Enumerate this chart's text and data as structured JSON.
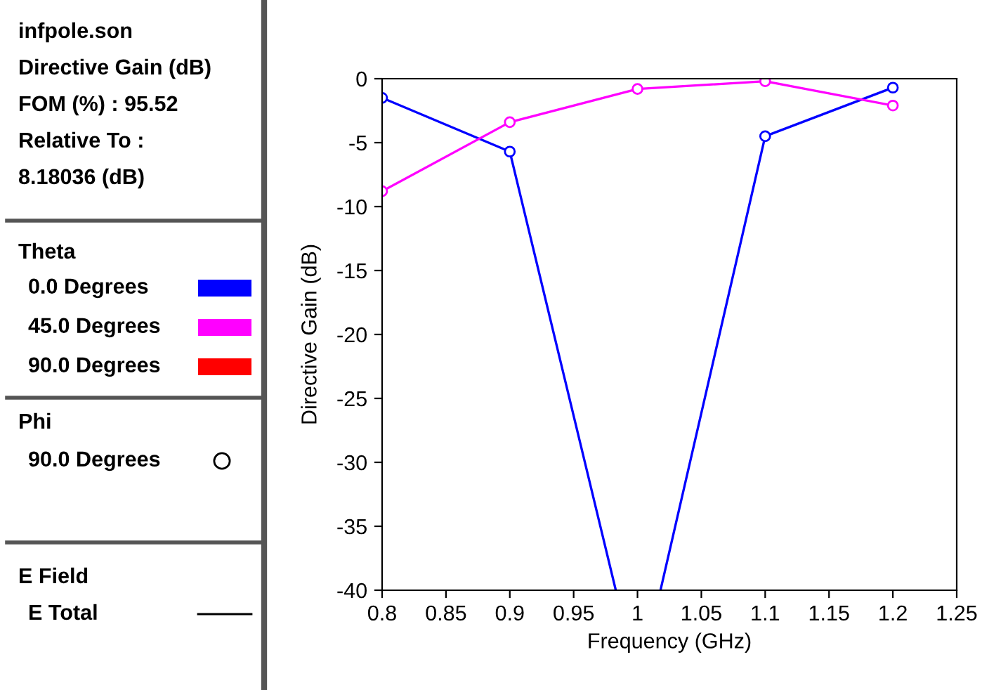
{
  "chart_data": {
    "type": "line",
    "xlabel": "Frequency (GHz)",
    "ylabel": "Directive Gain (dB)",
    "x": [
      0.8,
      0.9,
      1.0,
      1.1,
      1.2
    ],
    "series": [
      {
        "name": "0.0 Degrees",
        "color": "#0000ff",
        "x": [
          0.8,
          0.9,
          0.983,
          1.0,
          1.018,
          1.1,
          1.2
        ],
        "values": [
          -1.5,
          -5.7,
          -40,
          null,
          -40,
          -4.5,
          -0.7
        ]
      },
      {
        "name": "45.0 Degrees",
        "color": "#ff00ff",
        "values": [
          -8.8,
          -3.4,
          -0.8,
          -0.2,
          -2.1
        ]
      },
      {
        "name": "90.0 Degrees",
        "color": "#ff0000",
        "values": [
          null,
          null,
          null,
          null,
          null
        ]
      }
    ],
    "legend_title": "Theta",
    "legend": "left",
    "annotations": [
      "infpole.son",
      "Directive Gain (dB)",
      "FOM (%) : 95.52",
      "Relative To :",
      "8.18036 (dB)",
      "Phi",
      "90.0 Degrees",
      "E Field",
      "E Total"
    ],
    "marker": "circle",
    "line_style": "solid",
    "grid": false,
    "xlim": [
      0.8,
      1.25
    ],
    "xticks": [
      0.8,
      0.85,
      0.9,
      0.95,
      1,
      1.05,
      1.1,
      1.15,
      1.2,
      1.25
    ],
    "ylim": [
      -40,
      0
    ],
    "yticks": [
      0,
      -5,
      -10,
      -15,
      -20,
      -25,
      -30,
      -35,
      -40
    ]
  }
}
